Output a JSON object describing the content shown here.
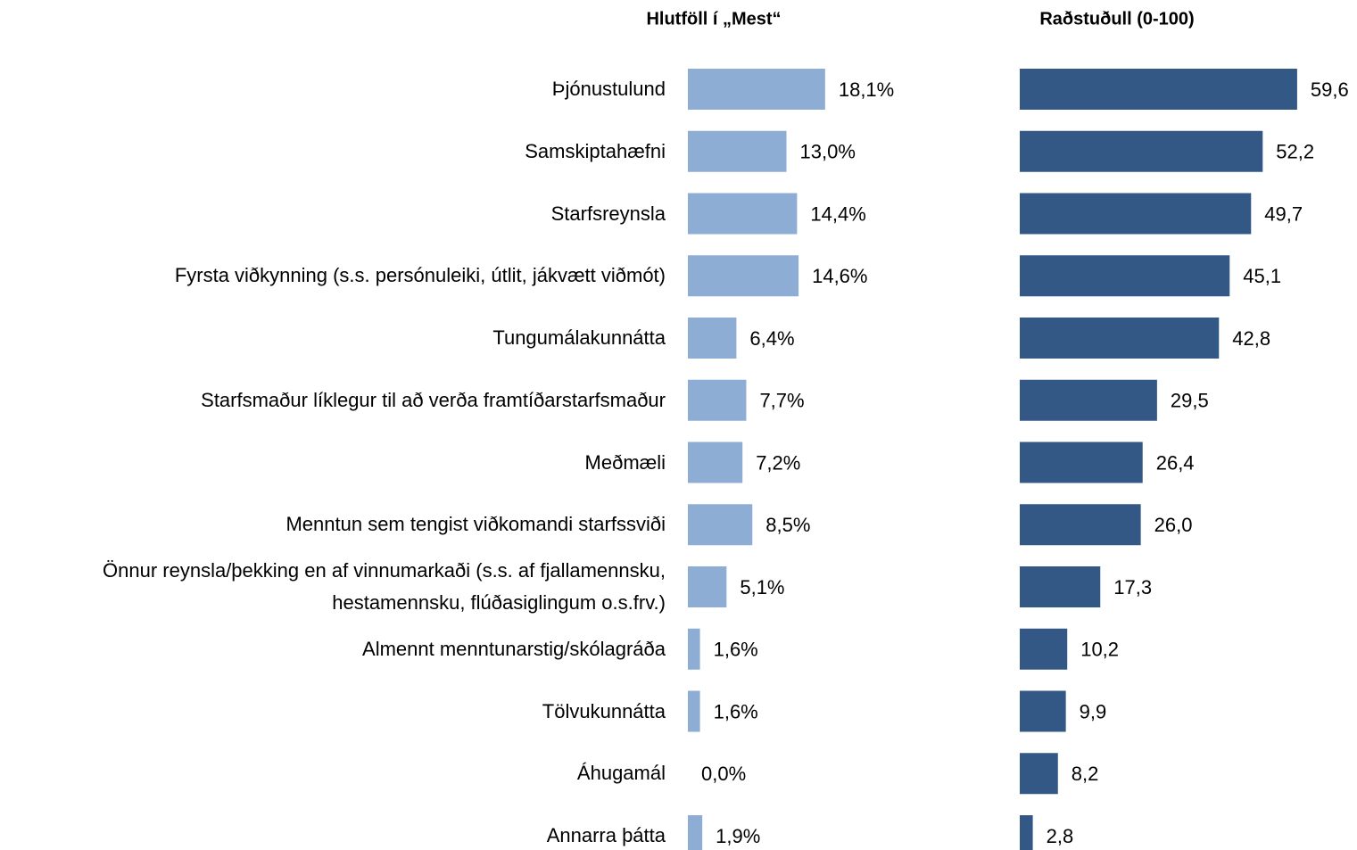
{
  "chart_data": {
    "type": "bar",
    "orientation": "horizontal",
    "categories": [
      "Þjónustulund",
      "Samskiptahæfni",
      "Starfsreynsla",
      "Fyrsta viðkynning (s.s. persónuleiki, útlit, jákvætt viðmót)",
      "Tungumálakunnátta",
      "Starfsmaður líklegur til að verða framtíðarstarfsmaður",
      "Meðmæli",
      "Menntun sem tengist viðkomandi starfssviði",
      "Önnur reynsla/þekking en af vinnumarkaði (s.s. af fjallamennsku,\nhestamennsku, flúðasiglingum o.s.frv.)",
      "Almennt menntunarstig/skólagráða",
      "Tölvukunnátta",
      "Áhugamál",
      "Annarra þátta"
    ],
    "series": [
      {
        "name": "Hlutföll í „Mest“",
        "color": "#8eadd5",
        "xlim": [
          0,
          40
        ],
        "values": [
          18.1,
          13.0,
          14.4,
          14.6,
          6.4,
          7.7,
          7.2,
          8.5,
          5.1,
          1.6,
          1.6,
          0.0,
          1.9
        ],
        "value_labels": [
          "18,1%",
          "13,0%",
          "14,4%",
          "14,6%",
          "6,4%",
          "7,7%",
          "7,2%",
          "8,5%",
          "5,1%",
          "1,6%",
          "1,6%",
          "0,0%",
          "1,9%"
        ]
      },
      {
        "name": "Raðstuðull (0-100)",
        "color": "#345886",
        "xlim": [
          0,
          60
        ],
        "values": [
          59.6,
          52.2,
          49.7,
          45.1,
          42.8,
          29.5,
          26.4,
          26.0,
          17.3,
          10.2,
          9.9,
          8.2,
          2.8
        ],
        "value_labels": [
          "59,6",
          "52,2",
          "49,7",
          "45,1",
          "42,8",
          "29,5",
          "26,4",
          "26,0",
          "17,3",
          "10,2",
          "9,9",
          "8,2",
          "2,8"
        ]
      }
    ]
  }
}
